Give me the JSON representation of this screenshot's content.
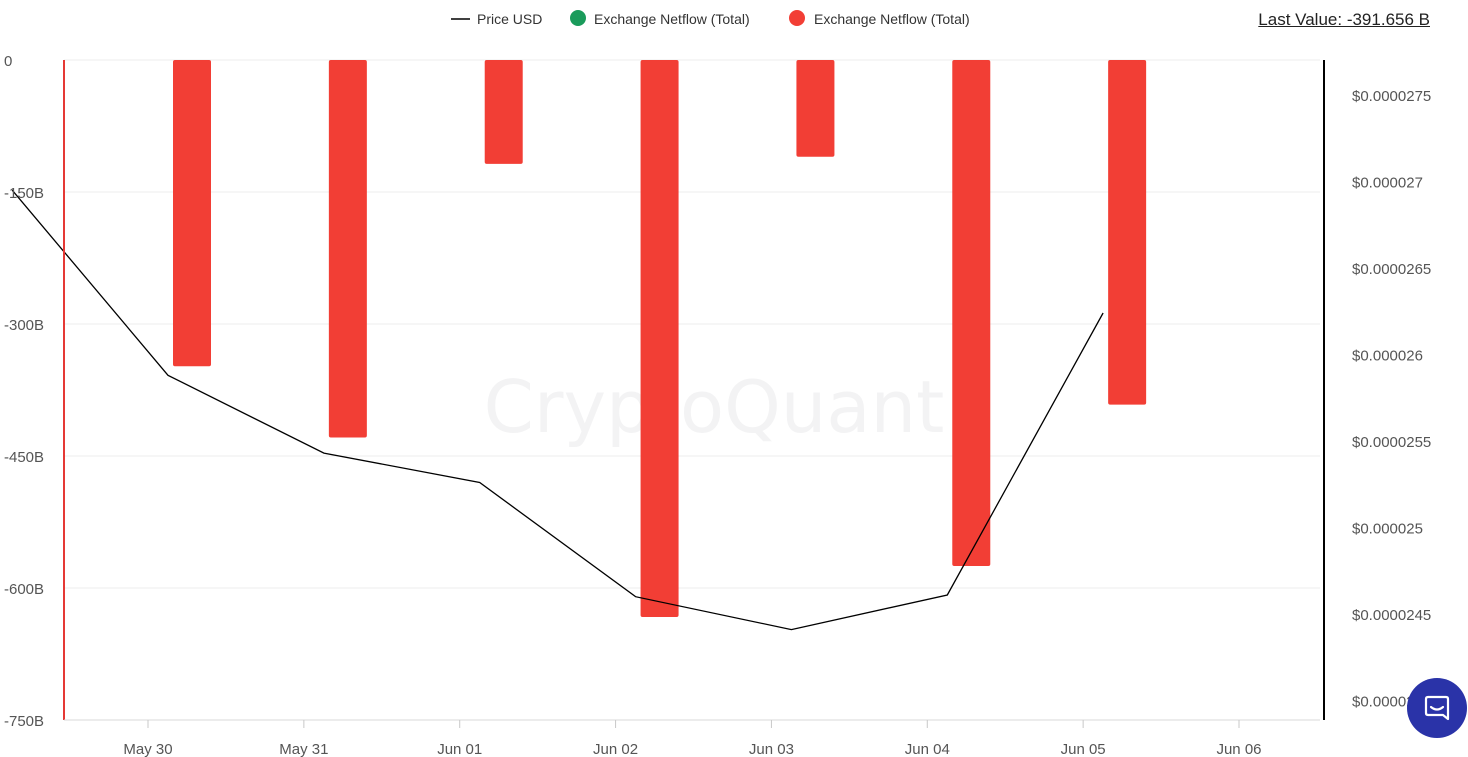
{
  "header": {
    "last_value_label": "Last Value: -391.656 B"
  },
  "legend": [
    {
      "label": "Price USD",
      "kind": "line",
      "color": "#000000"
    },
    {
      "label": "Exchange Netflow (Total)",
      "kind": "dot",
      "color": "#1a9b5b"
    },
    {
      "label": "Exchange Netflow (Total)",
      "kind": "dot",
      "color": "#f23e35"
    }
  ],
  "watermark": "CryptoQuant",
  "chat": {
    "icon": "chat-icon"
  },
  "colors": {
    "negative": "#f23e35",
    "positive": "#1a9b5b",
    "price_line": "#000000",
    "left_axis": "#e53935",
    "right_axis": "#000000"
  },
  "chart_data": {
    "type": "bar",
    "x_ticks": [
      "May 30",
      "May 31",
      "Jun 01",
      "Jun 02",
      "Jun 03",
      "Jun 04",
      "Jun 05",
      "Jun 06"
    ],
    "y_left": {
      "ticks": [
        "0",
        "-150B",
        "-300B",
        "-450B",
        "-600B",
        "-750B"
      ],
      "tick_values": [
        0,
        -150,
        -300,
        -450,
        -600,
        -750
      ],
      "range": [
        -750,
        0
      ],
      "unit": "B"
    },
    "y_right": {
      "ticks": [
        "$0.0000275",
        "$0.000027",
        "$0.0000265",
        "$0.000026",
        "$0.0000255",
        "$0.000025",
        "$0.0000245",
        "$0.000024"
      ],
      "tick_values": [
        2.75e-05,
        2.7e-05,
        2.65e-05,
        2.6e-05,
        2.55e-05,
        2.5e-05,
        2.45e-05,
        2.4e-05
      ]
    },
    "grid": true,
    "legend_position": "top-center",
    "series": [
      {
        "name": "Exchange Netflow (Total)",
        "kind": "bar",
        "axis": "left",
        "dates": [
          "May 30",
          "May 31",
          "Jun 01",
          "Jun 02",
          "Jun 03",
          "Jun 04",
          "Jun 05"
        ],
        "values": [
          -348,
          -429,
          -118,
          -633,
          -110,
          -575,
          -391.656
        ]
      },
      {
        "name": "Price USD",
        "kind": "line",
        "axis": "right",
        "dates": [
          "May 29",
          "May 30",
          "May 31",
          "Jun 01",
          "Jun 02",
          "Jun 03",
          "Jun 04",
          "Jun 05"
        ],
        "values": [
          2.695e-05,
          2.588e-05,
          2.543e-05,
          2.526e-05,
          2.46e-05,
          2.441e-05,
          2.461e-05,
          2.624e-05
        ]
      }
    ]
  }
}
